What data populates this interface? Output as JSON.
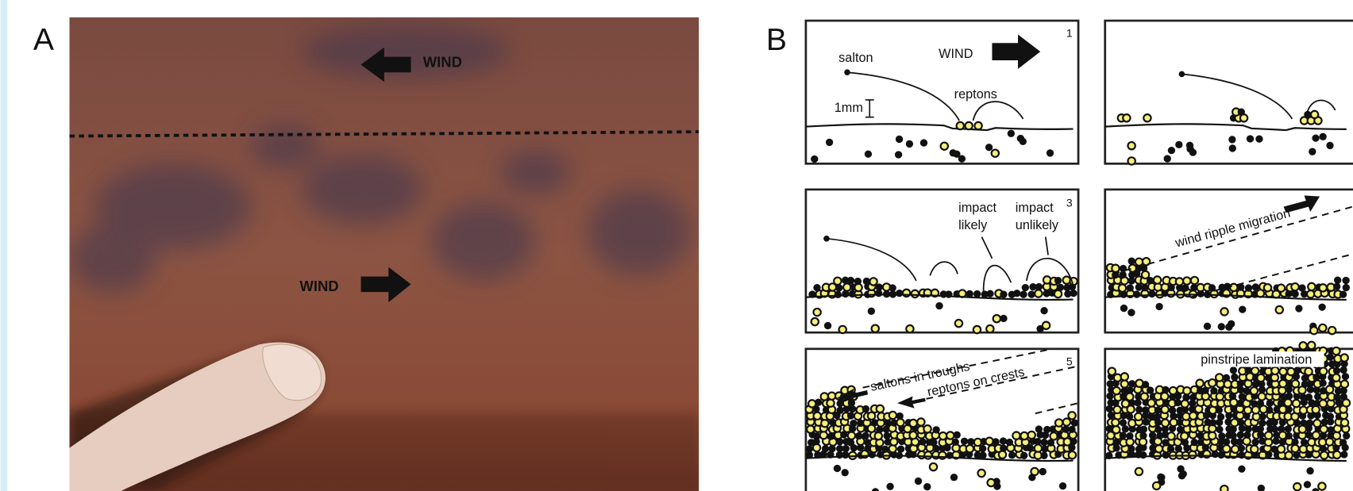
{
  "panel_a": {
    "label": "A",
    "arrow_labels": [
      "WIND",
      "WIND"
    ]
  },
  "panel_b": {
    "label": "B",
    "frame_1": {
      "number": "1",
      "salton": "salton",
      "wind": "WIND",
      "reptons": "reptons",
      "scale": "1mm"
    },
    "frame_3": {
      "number": "3",
      "impact_likely": [
        "impact",
        "likely"
      ],
      "impact_unlikely": [
        "impact",
        "unlikely"
      ]
    },
    "frame_4": {
      "migration": "wind ripple migration"
    },
    "frame_5": {
      "number": "5",
      "troughs": "saltons in troughs",
      "crests": "reptons on crests"
    },
    "frame_6": {
      "title": "pinstripe lamination"
    }
  }
}
